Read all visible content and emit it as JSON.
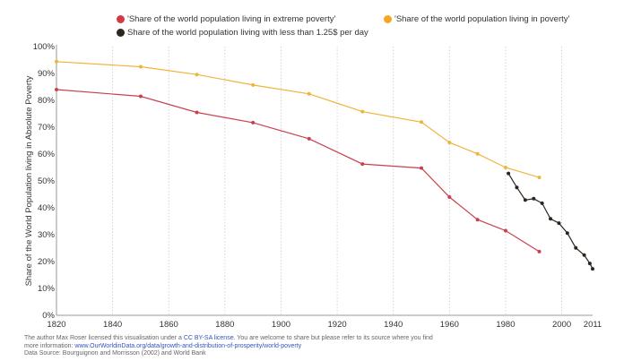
{
  "legend": [
    {
      "label": "'Share of the world population living in extreme poverty'",
      "color": "#d43a45"
    },
    {
      "label": "'Share of the world population living in poverty'",
      "color": "#f5a623"
    },
    {
      "label": "Share of the world population living with less than 1.25$ per day",
      "color": "#2d2620"
    }
  ],
  "footer": {
    "line1_prefix": "The author Max Roser licensed this visualisation under a ",
    "license_link": "CC BY-SA license",
    "line1_suffix": ". You are welcome to share but please refer to its source where you find more information: ",
    "source_link": "www.OurWorldinData.org/data/growth-and-distribution-of-prosperity/world-poverty",
    "data_source": "Data Source: Bourguignon and Morrisson (2002) and World Bank"
  },
  "chart_data": {
    "type": "line",
    "title": "",
    "xlabel": "",
    "ylabel": "Share of the World Population living in Absolute Poverty",
    "xlim": [
      1820,
      2011
    ],
    "ylim": [
      0,
      100
    ],
    "x_ticks": [
      "1820",
      "1840",
      "1860",
      "1880",
      "1900",
      "1920",
      "1940",
      "1960",
      "1980",
      "2000",
      "2011"
    ],
    "y_ticks": [
      "0%",
      "10%",
      "20%",
      "30%",
      "40%",
      "50%",
      "60%",
      "70%",
      "80%",
      "90%",
      "100%"
    ],
    "grid": "vertical dotted",
    "legend_position": "top",
    "series": [
      {
        "name": "'Share of the world population living in extreme poverty'",
        "color": "#c9414d",
        "x": [
          1820,
          1850,
          1870,
          1890,
          1910,
          1929,
          1950,
          1960,
          1970,
          1980,
          1992
        ],
        "values": [
          84,
          81.5,
          75.5,
          71.7,
          65.7,
          56.3,
          54.8,
          44,
          35.6,
          31.5,
          23.7
        ]
      },
      {
        "name": "'Share of the world population living in poverty'",
        "color": "#f0b43c",
        "x": [
          1820,
          1850,
          1870,
          1890,
          1910,
          1929,
          1950,
          1960,
          1970,
          1980,
          1992
        ],
        "values": [
          94.4,
          92.5,
          89.6,
          85.7,
          82.4,
          75.8,
          71.9,
          64.3,
          60.1,
          55,
          51.3
        ]
      },
      {
        "name": "Share of the world population living with less than 1.25$ per day",
        "color": "#2d2620",
        "x": [
          1981,
          1984,
          1987,
          1990,
          1993,
          1996,
          1999,
          2002,
          2005,
          2008,
          2010,
          2011
        ],
        "values": [
          52.8,
          47.6,
          42.9,
          43.4,
          41.7,
          35.9,
          34.3,
          30.6,
          25.1,
          22.4,
          19.3,
          17.3
        ]
      }
    ]
  }
}
